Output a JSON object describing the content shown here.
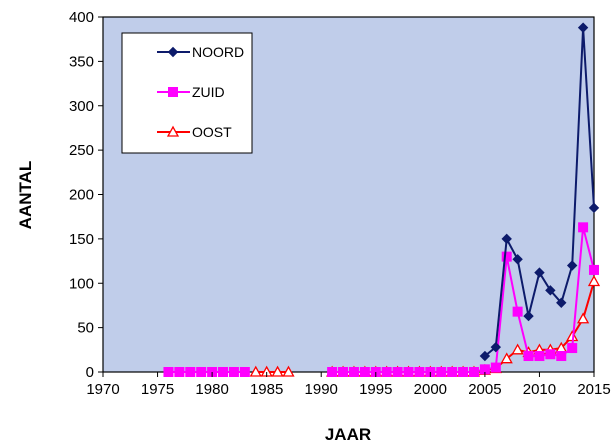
{
  "chart_data": {
    "type": "line",
    "title": "",
    "xlabel": "JAAR",
    "ylabel": "AANTAL",
    "xlim": [
      1970,
      2015
    ],
    "ylim": [
      0,
      400
    ],
    "x_ticks": [
      "1970",
      "1975",
      "1980",
      "1985",
      "1990",
      "1995",
      "2000",
      "2005",
      "2010",
      "2015"
    ],
    "y_ticks": [
      "0",
      "50",
      "100",
      "150",
      "200",
      "250",
      "300",
      "350",
      "400"
    ],
    "grid": false,
    "plot_background": "#c0cdea",
    "legend_position": "top-left",
    "series": [
      {
        "name": "NOORD",
        "color": "#0d1b6b",
        "marker": "diamond",
        "points": [
          [
            2005,
            18
          ],
          [
            2006,
            28
          ],
          [
            2007,
            150
          ],
          [
            2008,
            127
          ],
          [
            2009,
            63
          ],
          [
            2010,
            112
          ],
          [
            2011,
            92
          ],
          [
            2012,
            78
          ],
          [
            2013,
            120
          ],
          [
            2014,
            388
          ],
          [
            2015,
            185
          ]
        ]
      },
      {
        "name": "ZUID",
        "color": "#ff00ff",
        "marker": "square",
        "points": [
          [
            1976,
            0
          ],
          [
            1977,
            0
          ],
          [
            1978,
            0
          ],
          [
            1979,
            0
          ],
          [
            1980,
            0
          ],
          [
            1981,
            0
          ],
          [
            1982,
            0
          ],
          [
            1983,
            0
          ],
          [
            1991,
            0
          ],
          [
            1992,
            0
          ],
          [
            1993,
            0
          ],
          [
            1994,
            0
          ],
          [
            1995,
            0
          ],
          [
            1996,
            0
          ],
          [
            1997,
            0
          ],
          [
            1998,
            0
          ],
          [
            1999,
            0
          ],
          [
            2000,
            0
          ],
          [
            2001,
            0
          ],
          [
            2002,
            0
          ],
          [
            2003,
            0
          ],
          [
            2004,
            0
          ],
          [
            2005,
            3
          ],
          [
            2006,
            5
          ],
          [
            2007,
            130
          ],
          [
            2008,
            68
          ],
          [
            2009,
            18
          ],
          [
            2010,
            18
          ],
          [
            2011,
            20
          ],
          [
            2012,
            18
          ],
          [
            2013,
            27
          ],
          [
            2014,
            163
          ],
          [
            2015,
            115
          ]
        ]
      },
      {
        "name": "OOST",
        "color": "#ff0000",
        "marker": "triangle",
        "points": [
          [
            1984,
            0
          ],
          [
            1985,
            0
          ],
          [
            1986,
            0
          ],
          [
            1987,
            0
          ],
          [
            1991,
            0
          ],
          [
            1992,
            0
          ],
          [
            1993,
            0
          ],
          [
            1994,
            0
          ],
          [
            1995,
            0
          ],
          [
            1996,
            0
          ],
          [
            1997,
            0
          ],
          [
            1998,
            0
          ],
          [
            1999,
            0
          ],
          [
            2000,
            0
          ],
          [
            2001,
            0
          ],
          [
            2002,
            0
          ],
          [
            2003,
            0
          ],
          [
            2004,
            0
          ],
          [
            2005,
            2
          ],
          [
            2006,
            4
          ],
          [
            2007,
            15
          ],
          [
            2008,
            25
          ],
          [
            2009,
            22
          ],
          [
            2010,
            25
          ],
          [
            2011,
            25
          ],
          [
            2012,
            27
          ],
          [
            2013,
            40
          ],
          [
            2014,
            60
          ],
          [
            2015,
            102
          ]
        ]
      }
    ]
  }
}
